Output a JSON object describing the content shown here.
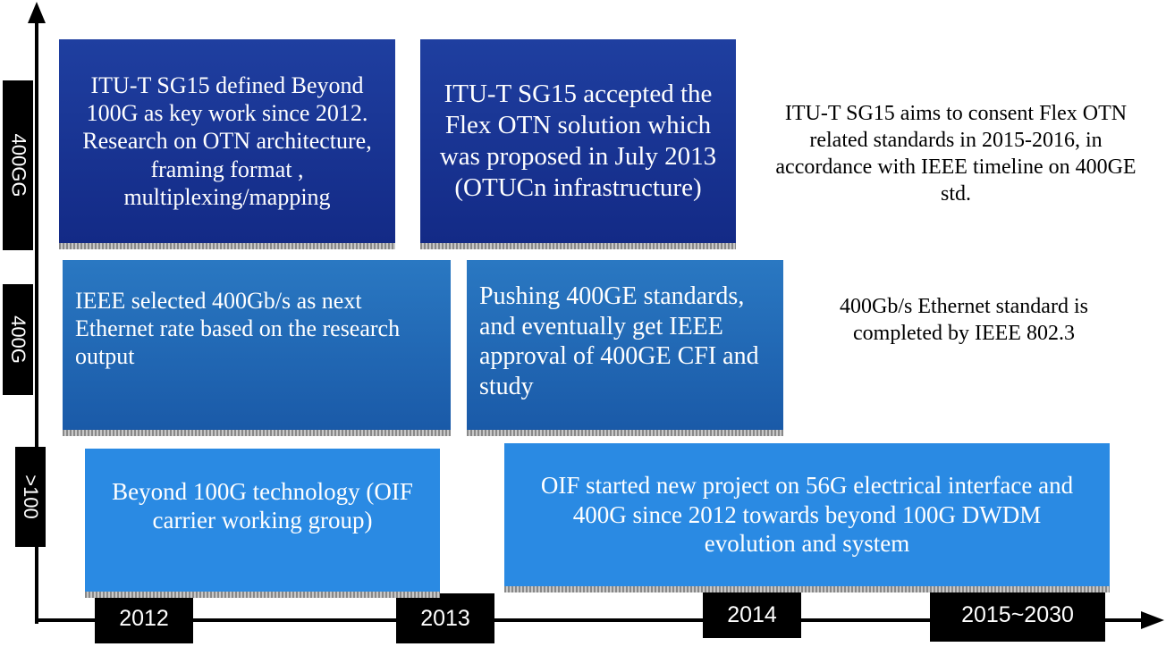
{
  "y_axis_labels": [
    "400GG",
    "400G",
    ">100"
  ],
  "x_axis_labels": [
    "2012",
    "2013",
    "2014",
    "2015~2030"
  ],
  "boxes": {
    "itu_defined": "ITU-T SG15 defined Beyond 100G as key work since 2012. Research on OTN architecture, framing format , multiplexing/mapping",
    "itu_accepted": "ITU-T SG15 accepted the Flex OTN solution which was proposed in July 2013 (OTUCn infrastructure)",
    "ieee_selected": "IEEE selected 400Gb/s as next Ethernet rate based on the research output",
    "pushing_400ge": "Pushing 400GE standards, and eventually get IEEE approval of 400GE CFI and study",
    "beyond_100g": "Beyond 100G technology (OIF carrier working group)",
    "oif_project": "OIF started new project on 56G electrical interface and 400G since 2012 towards beyond 100G DWDM evolution and system"
  },
  "notes": {
    "itu_aims": "ITU-T SG15 aims to consent Flex OTN related standards in 2015-2016, in accordance with IEEE timeline on 400GE std.",
    "ethernet_completed": "400Gb/s Ethernet standard is completed by IEEE 802.3"
  },
  "colors": {
    "dark_box": "#1a36a0",
    "mid_box": "#1f6cb8",
    "light_box": "#2a8ae3",
    "axis": "#000000"
  }
}
